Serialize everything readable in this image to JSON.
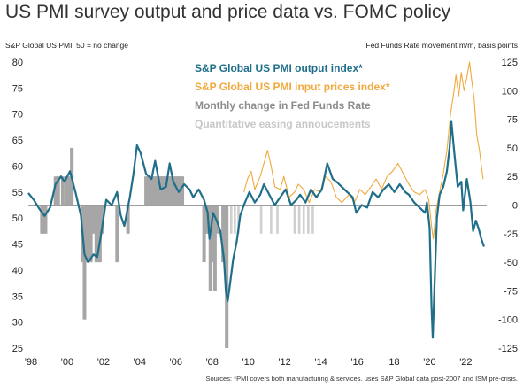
{
  "title": "US PMI survey output and price data vs. FOMC policy",
  "left_axis_label": "S&P Global US PMI, 50 = no change",
  "right_axis_label": "Fed Funds Rate movement m/m, basis points",
  "source": "Sources: *PMI covers both manufacturing & services. uses S&P Global data post-2007 and ISM pre-crisis.",
  "legend": [
    {
      "label": "S&P Global US PMI  output index*",
      "color": "#1f6f8b"
    },
    {
      "label": "S&P Global US PMI  input  prices index*",
      "color": "#f0a93c"
    },
    {
      "label": "Monthly change in Fed Funds Rate",
      "color": "#8c8c8c"
    },
    {
      "label": "Quantitative easing annoucements",
      "color": "#c8c8c8"
    }
  ],
  "chart_data": {
    "type": "line",
    "x_ticks": [
      "'98",
      "'00",
      "'02",
      "'04",
      "'06",
      "'08",
      "'10",
      "'12",
      "'14",
      "'16",
      "'18",
      "'20",
      "'22"
    ],
    "xlim": [
      1998,
      2023.3
    ],
    "y_left": {
      "ticks": [
        80,
        75,
        70,
        65,
        60,
        55,
        50,
        45,
        40,
        35,
        30,
        25
      ],
      "lim": [
        25,
        80
      ]
    },
    "y_right": {
      "ticks": [
        125,
        100,
        75,
        50,
        25,
        0,
        -25,
        -50,
        -75,
        -100,
        -125
      ],
      "lim": [
        -125,
        125
      ]
    },
    "series": [
      {
        "name": "S&P Global US PMI  output index*",
        "color": "#1f6f8b",
        "axis": "left",
        "points": [
          [
            1998.0,
            54.8
          ],
          [
            1998.3,
            53.5
          ],
          [
            1998.6,
            51.8
          ],
          [
            1998.9,
            50.4
          ],
          [
            1999.2,
            52.0
          ],
          [
            1999.5,
            56.5
          ],
          [
            1999.8,
            58.0
          ],
          [
            2000.0,
            57.0
          ],
          [
            2000.3,
            59.0
          ],
          [
            2000.6,
            55.0
          ],
          [
            2000.9,
            50.5
          ],
          [
            2001.1,
            43.0
          ],
          [
            2001.3,
            41.5
          ],
          [
            2001.6,
            43.0
          ],
          [
            2001.8,
            42.5
          ],
          [
            2002.0,
            46.5
          ],
          [
            2002.3,
            53.5
          ],
          [
            2002.6,
            52.5
          ],
          [
            2002.9,
            55.0
          ],
          [
            2003.1,
            50.5
          ],
          [
            2003.3,
            48.5
          ],
          [
            2003.6,
            54.0
          ],
          [
            2003.8,
            58.5
          ],
          [
            2004.0,
            64.0
          ],
          [
            2004.2,
            62.5
          ],
          [
            2004.5,
            58.5
          ],
          [
            2004.8,
            57.5
          ],
          [
            2005.0,
            61.0
          ],
          [
            2005.3,
            55.5
          ],
          [
            2005.6,
            56.0
          ],
          [
            2005.8,
            60.5
          ],
          [
            2006.0,
            57.0
          ],
          [
            2006.3,
            55.0
          ],
          [
            2006.6,
            56.5
          ],
          [
            2006.9,
            55.5
          ],
          [
            2007.1,
            54.0
          ],
          [
            2007.4,
            55.5
          ],
          [
            2007.7,
            53.5
          ],
          [
            2007.9,
            51.0
          ],
          [
            2008.0,
            46.0
          ],
          [
            2008.2,
            51.0
          ],
          [
            2008.4,
            49.5
          ],
          [
            2008.6,
            47.5
          ],
          [
            2008.8,
            42.0
          ],
          [
            2008.9,
            36.0
          ],
          [
            2009.0,
            34.0
          ],
          [
            2009.1,
            36.5
          ],
          [
            2009.3,
            42.0
          ],
          [
            2009.5,
            45.5
          ],
          [
            2009.7,
            50.5
          ],
          [
            2009.9,
            52.5
          ],
          [
            2010.2,
            55.0
          ],
          [
            2010.5,
            53.0
          ],
          [
            2010.8,
            54.5
          ],
          [
            2011.0,
            56.5
          ],
          [
            2011.3,
            54.5
          ],
          [
            2011.6,
            52.5
          ],
          [
            2011.9,
            54.0
          ],
          [
            2012.2,
            55.5
          ],
          [
            2012.5,
            52.5
          ],
          [
            2012.8,
            53.5
          ],
          [
            2013.0,
            54.5
          ],
          [
            2013.3,
            53.0
          ],
          [
            2013.6,
            55.5
          ],
          [
            2013.9,
            54.0
          ],
          [
            2014.2,
            55.5
          ],
          [
            2014.5,
            60.5
          ],
          [
            2014.8,
            57.5
          ],
          [
            2015.0,
            57.0
          ],
          [
            2015.3,
            56.0
          ],
          [
            2015.6,
            55.0
          ],
          [
            2015.9,
            54.0
          ],
          [
            2016.1,
            51.0
          ],
          [
            2016.4,
            52.5
          ],
          [
            2016.7,
            52.0
          ],
          [
            2017.0,
            55.0
          ],
          [
            2017.3,
            54.0
          ],
          [
            2017.6,
            55.5
          ],
          [
            2017.9,
            56.5
          ],
          [
            2018.2,
            55.0
          ],
          [
            2018.5,
            56.5
          ],
          [
            2018.8,
            55.0
          ],
          [
            2019.0,
            54.5
          ],
          [
            2019.3,
            53.0
          ],
          [
            2019.6,
            52.0
          ],
          [
            2019.9,
            51.0
          ],
          [
            2020.0,
            53.0
          ],
          [
            2020.15,
            48.0
          ],
          [
            2020.25,
            33.0
          ],
          [
            2020.32,
            27.0
          ],
          [
            2020.42,
            37.0
          ],
          [
            2020.55,
            50.0
          ],
          [
            2020.7,
            54.5
          ],
          [
            2020.9,
            56.0
          ],
          [
            2021.1,
            59.0
          ],
          [
            2021.25,
            63.5
          ],
          [
            2021.35,
            68.5
          ],
          [
            2021.5,
            63.0
          ],
          [
            2021.7,
            56.0
          ],
          [
            2021.9,
            57.0
          ],
          [
            2022.0,
            51.5
          ],
          [
            2022.2,
            57.5
          ],
          [
            2022.4,
            53.0
          ],
          [
            2022.55,
            47.5
          ],
          [
            2022.7,
            49.5
          ],
          [
            2022.85,
            48.0
          ],
          [
            2023.0,
            46.0
          ],
          [
            2023.15,
            44.5
          ]
        ]
      },
      {
        "name": "S&P Global US PMI  input  prices index*",
        "color": "#f0a93c",
        "axis": "left",
        "points": [
          [
            2009.9,
            55.0
          ],
          [
            2010.1,
            57.5
          ],
          [
            2010.3,
            59.0
          ],
          [
            2010.5,
            55.5
          ],
          [
            2010.8,
            58.0
          ],
          [
            2011.0,
            60.5
          ],
          [
            2011.2,
            63.0
          ],
          [
            2011.4,
            60.0
          ],
          [
            2011.6,
            56.0
          ],
          [
            2011.9,
            55.5
          ],
          [
            2012.1,
            58.0
          ],
          [
            2012.4,
            54.0
          ],
          [
            2012.7,
            55.0
          ],
          [
            2012.9,
            56.5
          ],
          [
            2013.2,
            55.5
          ],
          [
            2013.5,
            53.0
          ],
          [
            2013.8,
            55.5
          ],
          [
            2014.1,
            55.0
          ],
          [
            2014.4,
            58.0
          ],
          [
            2014.7,
            57.0
          ],
          [
            2015.0,
            54.0
          ],
          [
            2015.3,
            53.0
          ],
          [
            2015.7,
            54.5
          ],
          [
            2016.0,
            53.0
          ],
          [
            2016.3,
            55.5
          ],
          [
            2016.6,
            54.5
          ],
          [
            2016.9,
            56.0
          ],
          [
            2017.2,
            57.5
          ],
          [
            2017.5,
            55.5
          ],
          [
            2017.8,
            58.0
          ],
          [
            2018.1,
            59.0
          ],
          [
            2018.4,
            60.5
          ],
          [
            2018.7,
            58.5
          ],
          [
            2019.0,
            56.5
          ],
          [
            2019.3,
            55.0
          ],
          [
            2019.6,
            54.5
          ],
          [
            2019.9,
            55.5
          ],
          [
            2020.1,
            53.5
          ],
          [
            2020.25,
            48.5
          ],
          [
            2020.35,
            46.0
          ],
          [
            2020.5,
            51.5
          ],
          [
            2020.7,
            55.0
          ],
          [
            2020.9,
            58.5
          ],
          [
            2021.1,
            63.0
          ],
          [
            2021.3,
            70.0
          ],
          [
            2021.5,
            74.5
          ],
          [
            2021.6,
            77.5
          ],
          [
            2021.75,
            73.5
          ],
          [
            2021.9,
            78.0
          ],
          [
            2022.05,
            74.5
          ],
          [
            2022.2,
            77.0
          ],
          [
            2022.35,
            80.0
          ],
          [
            2022.45,
            77.0
          ],
          [
            2022.6,
            73.0
          ],
          [
            2022.75,
            66.0
          ],
          [
            2022.9,
            63.0
          ],
          [
            2023.0,
            60.0
          ],
          [
            2023.1,
            57.5
          ]
        ]
      }
    ],
    "bars": {
      "name": "Monthly change in Fed Funds Rate",
      "color": "#a6a6a6",
      "axis": "right",
      "values": [
        [
          1998.75,
          -25
        ],
        [
          1998.85,
          -25
        ],
        [
          1998.95,
          -25
        ],
        [
          1999.5,
          25
        ],
        [
          1999.65,
          25
        ],
        [
          1999.9,
          25
        ],
        [
          2000.1,
          25
        ],
        [
          2000.25,
          25
        ],
        [
          2000.4,
          50
        ],
        [
          2001.0,
          -50
        ],
        [
          2001.1,
          -100
        ],
        [
          2001.25,
          -50
        ],
        [
          2001.35,
          -50
        ],
        [
          2001.45,
          -50
        ],
        [
          2001.6,
          -25
        ],
        [
          2001.75,
          -50
        ],
        [
          2001.85,
          -50
        ],
        [
          2001.95,
          -50
        ],
        [
          2002.05,
          -25
        ],
        [
          2002.9,
          -50
        ],
        [
          2003.5,
          -25
        ],
        [
          2004.5,
          25
        ],
        [
          2004.6,
          25
        ],
        [
          2004.7,
          25
        ],
        [
          2004.8,
          25
        ],
        [
          2004.9,
          25
        ],
        [
          2005.0,
          25
        ],
        [
          2005.1,
          25
        ],
        [
          2005.2,
          25
        ],
        [
          2005.3,
          25
        ],
        [
          2005.4,
          25
        ],
        [
          2005.5,
          25
        ],
        [
          2005.6,
          25
        ],
        [
          2005.7,
          25
        ],
        [
          2005.8,
          25
        ],
        [
          2005.9,
          25
        ],
        [
          2006.0,
          25
        ],
        [
          2006.1,
          25
        ],
        [
          2006.2,
          25
        ],
        [
          2006.3,
          25
        ],
        [
          2006.4,
          25
        ],
        [
          2006.5,
          25
        ],
        [
          2007.7,
          -50
        ],
        [
          2007.8,
          -25
        ],
        [
          2007.95,
          -25
        ],
        [
          2008.05,
          -75
        ],
        [
          2008.15,
          -50
        ],
        [
          2008.3,
          -75
        ],
        [
          2008.4,
          -25
        ],
        [
          2008.75,
          -50
        ],
        [
          2008.85,
          -50
        ],
        [
          2008.95,
          -125
        ]
      ]
    },
    "qe_bars": {
      "name": "Quantitative easing annoucements",
      "color": "#cfcfcf",
      "axis": "right",
      "values": [
        [
          2009.2,
          -25
        ],
        [
          2009.4,
          -25
        ],
        [
          2009.6,
          -25
        ],
        [
          2010.85,
          -25
        ],
        [
          2011.4,
          -25
        ],
        [
          2011.75,
          -25
        ],
        [
          2012.7,
          -25
        ],
        [
          2012.95,
          -25
        ],
        [
          2013.2,
          -25
        ],
        [
          2013.45,
          -25
        ],
        [
          2013.7,
          -25
        ]
      ]
    }
  }
}
